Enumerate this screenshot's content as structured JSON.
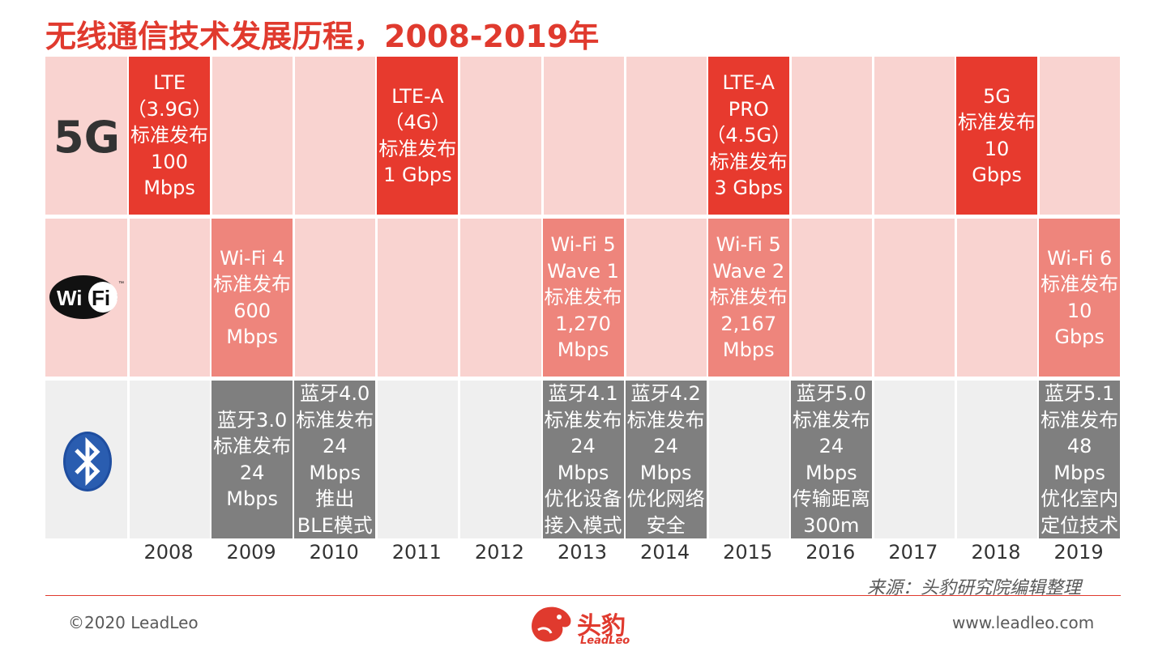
{
  "title": "无线通信技术发展历程，2008-2019年",
  "rows": {
    "g5": {
      "label": "5G"
    },
    "wifi": {
      "icon": "wifi-logo-icon",
      "logo_text_1": "Wi",
      "logo_text_2": "Fi"
    },
    "bt": {
      "icon": "bluetooth-icon"
    }
  },
  "years": [
    "2008",
    "2009",
    "2010",
    "2011",
    "2012",
    "2013",
    "2014",
    "2015",
    "2016",
    "2017",
    "2018",
    "2019"
  ],
  "milestones": {
    "g5": [
      {
        "year": "2008",
        "text": "LTE\n（3.9G）\n标准发布\n100\nMbps"
      },
      {
        "year": "2011",
        "text": "LTE-A\n（4G）\n标准发布\n1 Gbps"
      },
      {
        "year": "2015",
        "text": "LTE-A\nPRO\n（4.5G）\n标准发布\n3 Gbps"
      },
      {
        "year": "2018",
        "text": "5G\n标准发布\n10\nGbps"
      }
    ],
    "wifi": [
      {
        "year": "2009",
        "text": "Wi-Fi 4\n标准发布\n600\nMbps"
      },
      {
        "year": "2013",
        "text": "Wi-Fi 5\nWave 1\n标准发布\n1,270\nMbps"
      },
      {
        "year": "2015",
        "text": "Wi-Fi 5\nWave 2\n标准发布\n2,167\nMbps"
      },
      {
        "year": "2019",
        "text": "Wi-Fi 6\n标准发布\n10\nGbps"
      }
    ],
    "bt": [
      {
        "year": "2009",
        "text": "蓝牙3.0\n标准发布\n24\nMbps"
      },
      {
        "year": "2010",
        "text": "蓝牙4.0\n标准发布\n24\nMbps\n推出\nBLE模式"
      },
      {
        "year": "2013",
        "text": "蓝牙4.1\n标准发布\n24\nMbps\n优化设备\n接入模式"
      },
      {
        "year": "2014",
        "text": "蓝牙4.2\n标准发布\n24\nMbps\n优化网络\n安全"
      },
      {
        "year": "2016",
        "text": "蓝牙5.0\n标准发布\n24\nMbps\n传输距离\n300m"
      },
      {
        "year": "2019",
        "text": "蓝牙5.1\n标准发布\n48\nMbps\n优化室内\n定位技术"
      }
    ]
  },
  "colors": {
    "g5": "#e73a2e",
    "wifi": "#ee857c",
    "bt": "#7f7f7f",
    "accent": "#e03a2e"
  },
  "footer": {
    "source": "来源：头豹研究院编辑整理",
    "copyright": "©2020 LeadLeo",
    "website": "www.leadleo.com",
    "logo_cn": "头豹",
    "logo_en": "LeadLeo"
  }
}
